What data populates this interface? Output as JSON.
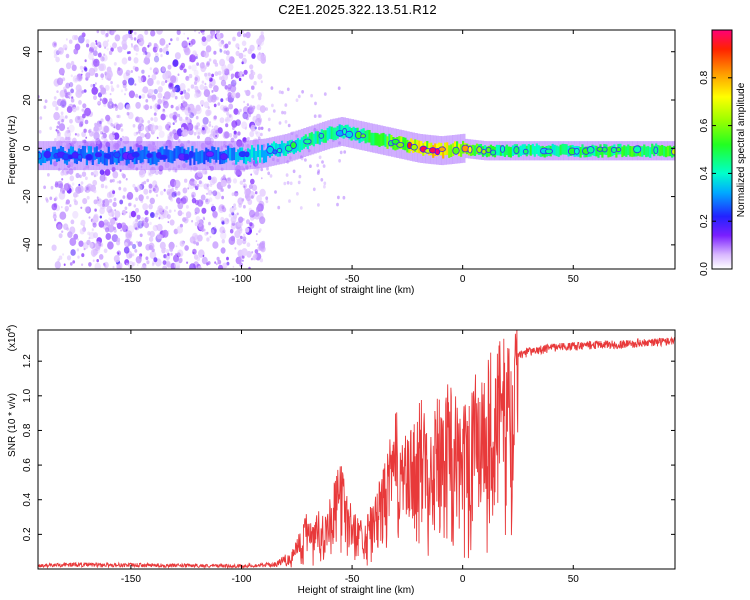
{
  "title": "C2E1.2025.322.13.51.R12",
  "chart_data": [
    {
      "type": "heatmap",
      "name": "spectrogram",
      "xlabel": "Height of straight line (km)",
      "ylabel": "Frequency (Hz)",
      "xlim": [
        -192,
        96
      ],
      "ylim": [
        -50,
        49
      ],
      "xticks": [
        -150,
        -100,
        -50,
        0,
        50
      ],
      "yticks": [
        -40,
        -20,
        0,
        20,
        40
      ],
      "colorbar": {
        "label": "Normalized spectral amplitude",
        "range": [
          0,
          1
        ],
        "ticks": [
          "0.0",
          "0.2",
          "0.4",
          "0.6",
          "0.8"
        ],
        "tick_values": [
          0.0,
          0.2,
          0.4,
          0.6,
          0.8
        ]
      },
      "ridge": {
        "description_x": [
          -192,
          -150,
          -110,
          -100,
          -90,
          -80,
          -70,
          -60,
          -55,
          -50,
          -45,
          -40,
          -30,
          -20,
          -10,
          0,
          10,
          20,
          50,
          96
        ],
        "center_freq_hz": [
          -3,
          -3,
          -3,
          -3,
          -2,
          0,
          3,
          6,
          7,
          6,
          5,
          4,
          2,
          0,
          -1,
          0,
          -1,
          -1,
          -1,
          -1
        ],
        "amplitude": [
          0.25,
          0.2,
          0.2,
          0.3,
          0.35,
          0.4,
          0.45,
          0.45,
          0.4,
          0.45,
          0.5,
          0.55,
          0.7,
          0.85,
          0.9,
          0.75,
          0.55,
          0.5,
          0.5,
          0.6
        ]
      },
      "noise_region_km": [
        -185,
        -90
      ]
    },
    {
      "type": "line",
      "name": "snr",
      "xlabel": "Height of straight line (km)",
      "ylabel": "SNR (10 * v/v)",
      "exponent_label": "(x10",
      "exponent_power": "4",
      "xlim": [
        -192,
        96
      ],
      "ylim": [
        0,
        1.38
      ],
      "xticks": [
        -150,
        -100,
        -50,
        0,
        50
      ],
      "yticks": [
        0.2,
        0.4,
        0.6,
        0.8,
        1.0,
        1.2
      ],
      "ytick_labels": [
        "0.2",
        "0.4",
        "0.6",
        "0.8",
        "1.0",
        "1.2"
      ],
      "color": "#e8393a",
      "envelope_x": [
        -192,
        -180,
        -100,
        -85,
        -78,
        -70,
        -62,
        -55,
        -50,
        -45,
        -40,
        -35,
        -30,
        -25,
        -20,
        -15,
        -10,
        -5,
        0,
        5,
        10,
        15,
        20,
        25,
        30,
        40,
        50,
        60,
        70,
        80,
        96
      ],
      "envelope_y": [
        0.02,
        0.03,
        0.02,
        0.03,
        0.08,
        0.3,
        0.3,
        0.55,
        0.3,
        0.25,
        0.35,
        0.55,
        0.8,
        0.65,
        0.85,
        0.9,
        0.9,
        0.95,
        0.8,
        1.0,
        1.05,
        1.15,
        1.18,
        1.25,
        1.28,
        1.3,
        1.31,
        1.32,
        1.32,
        1.33,
        1.34
      ]
    }
  ]
}
